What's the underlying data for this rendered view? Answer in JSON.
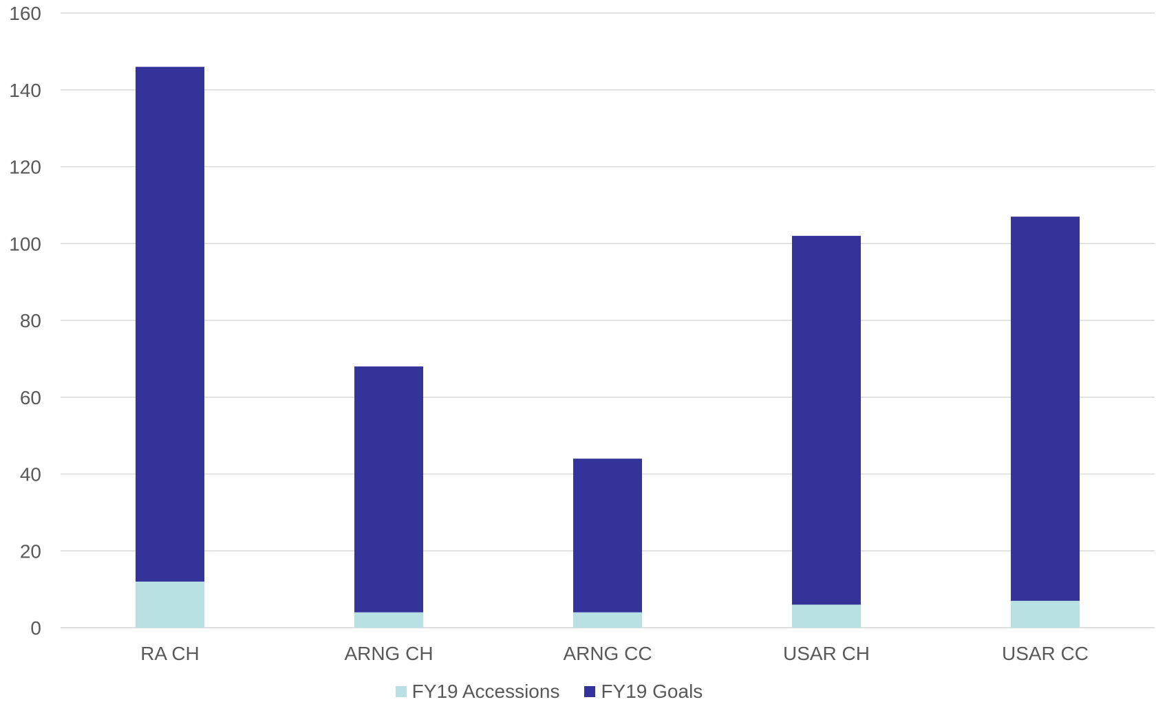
{
  "chart_data": {
    "type": "bar",
    "stacked": true,
    "categories": [
      "RA CH",
      "ARNG CH",
      "ARNG CC",
      "USAR CH",
      "USAR CC"
    ],
    "series": [
      {
        "name": "FY19 Accessions",
        "color": "#b9e0e3",
        "values": [
          12,
          4,
          4,
          6,
          7
        ]
      },
      {
        "name": "FY19 Goals",
        "color": "#333399",
        "values": [
          134,
          64,
          40,
          96,
          100
        ]
      }
    ],
    "ylim": [
      0,
      160
    ],
    "yticks": [
      0,
      20,
      40,
      60,
      80,
      100,
      120,
      140,
      160
    ],
    "grid": true,
    "legend_position": "bottom"
  }
}
